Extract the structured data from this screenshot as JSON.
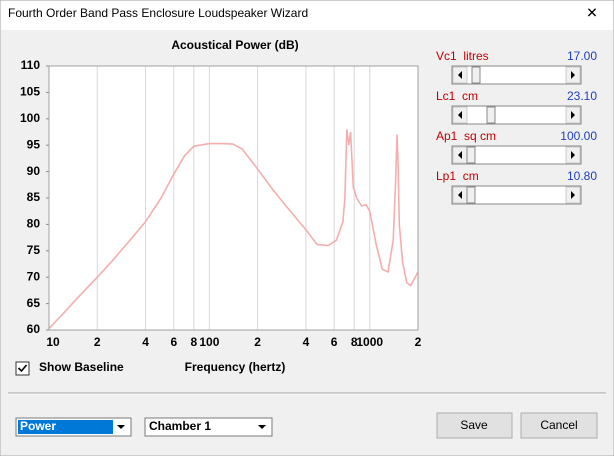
{
  "window": {
    "title": "Fourth Order Band Pass Enclosure Loudspeaker Wizard",
    "close": "✕"
  },
  "chart_data": {
    "type": "line",
    "title": "Acoustical Power (dB)",
    "x_label": "Frequency (hertz)",
    "x_scale": "log",
    "grid": "x",
    "color": "#f4aeae",
    "x": [
      10,
      12,
      15,
      20,
      25,
      30,
      40,
      50,
      60,
      70,
      80,
      100,
      120,
      140,
      160,
      200,
      250,
      300,
      400,
      470,
      550,
      620,
      680,
      700,
      720,
      740,
      760,
      790,
      830,
      890,
      950,
      1000,
      1100,
      1200,
      1300,
      1400,
      1450,
      1480,
      1500,
      1530,
      1600,
      1700,
      1800,
      2000
    ],
    "values": [
      60.3,
      62.8,
      66,
      70,
      73.2,
      76,
      80.5,
      85,
      89.5,
      93,
      94.8,
      95.3,
      95.3,
      95.2,
      94.3,
      90.5,
      86.5,
      83.5,
      79,
      76.2,
      76,
      77,
      80.5,
      85,
      98,
      95,
      97.5,
      87,
      85,
      83.5,
      83.7,
      82.5,
      76,
      71.5,
      71,
      77,
      88,
      97,
      92,
      80,
      73,
      69,
      68.4,
      71
    ],
    "xlim": [
      10,
      2000
    ],
    "ylim": [
      60,
      110
    ],
    "xticks": [
      10,
      {
        "value": 20,
        "label": "2"
      },
      {
        "value": 40,
        "label": "4"
      },
      {
        "value": 60,
        "label": "6"
      },
      {
        "value": 80,
        "label": "8"
      },
      100,
      {
        "value": 200,
        "label": "2"
      },
      {
        "value": 400,
        "label": "4"
      },
      {
        "value": 600,
        "label": "6"
      },
      {
        "value": 800,
        "label": "8"
      },
      1000,
      {
        "value": 2000,
        "label": "2"
      }
    ],
    "yticks": [
      60,
      65,
      70,
      75,
      80,
      85,
      90,
      95,
      100,
      105,
      110
    ]
  },
  "sliders": [
    {
      "label": "Vc1  litres",
      "value": "17.00"
    },
    {
      "label": "Lc1  cm",
      "value": "23.10"
    },
    {
      "label": "Ap1  sq cm",
      "value": "100.00"
    },
    {
      "label": "Lp1  cm",
      "value": "10.80"
    }
  ],
  "baseline_checkbox": {
    "label": "Show Baseline",
    "checked": true
  },
  "dropdowns": [
    "Power",
    "Chamber 1"
  ],
  "buttons": [
    "Save",
    "Cancel"
  ]
}
